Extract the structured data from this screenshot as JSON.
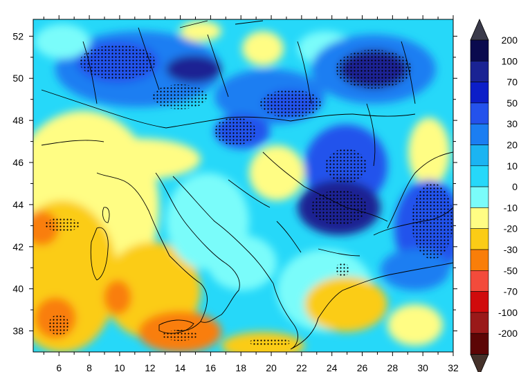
{
  "map": {
    "x_axis": {
      "range": [
        4.3,
        32.0
      ],
      "ticks": [
        "6",
        "8",
        "10",
        "12",
        "14",
        "16",
        "18",
        "20",
        "22",
        "24",
        "26",
        "28",
        "30",
        "32"
      ]
    },
    "y_axis": {
      "range": [
        37.0,
        52.8
      ],
      "ticks": [
        "38",
        "40",
        "42",
        "44",
        "46",
        "48",
        "50",
        "52"
      ]
    },
    "stippling": "dots mark statistically significant grid cells"
  },
  "colorbar": {
    "labels": [
      "200",
      "100",
      "70",
      "50",
      "30",
      "20",
      "10",
      "0",
      "-10",
      "-20",
      "-30",
      "-50",
      "-70",
      "-100",
      "-200"
    ],
    "colors": [
      "#0a0a4e",
      "#1a2393",
      "#0c1ec8",
      "#2452ec",
      "#1b7ef2",
      "#1bb4f2",
      "#26d8f9",
      "#7afcfa",
      "#fffd84",
      "#fbcc16",
      "#f97e09",
      "#f34b3b",
      "#d00b0c",
      "#9a1919",
      "#5c0505"
    ],
    "top_arrow_color": "#3a3a4a",
    "bottom_arrow_color": "#45312a"
  }
}
